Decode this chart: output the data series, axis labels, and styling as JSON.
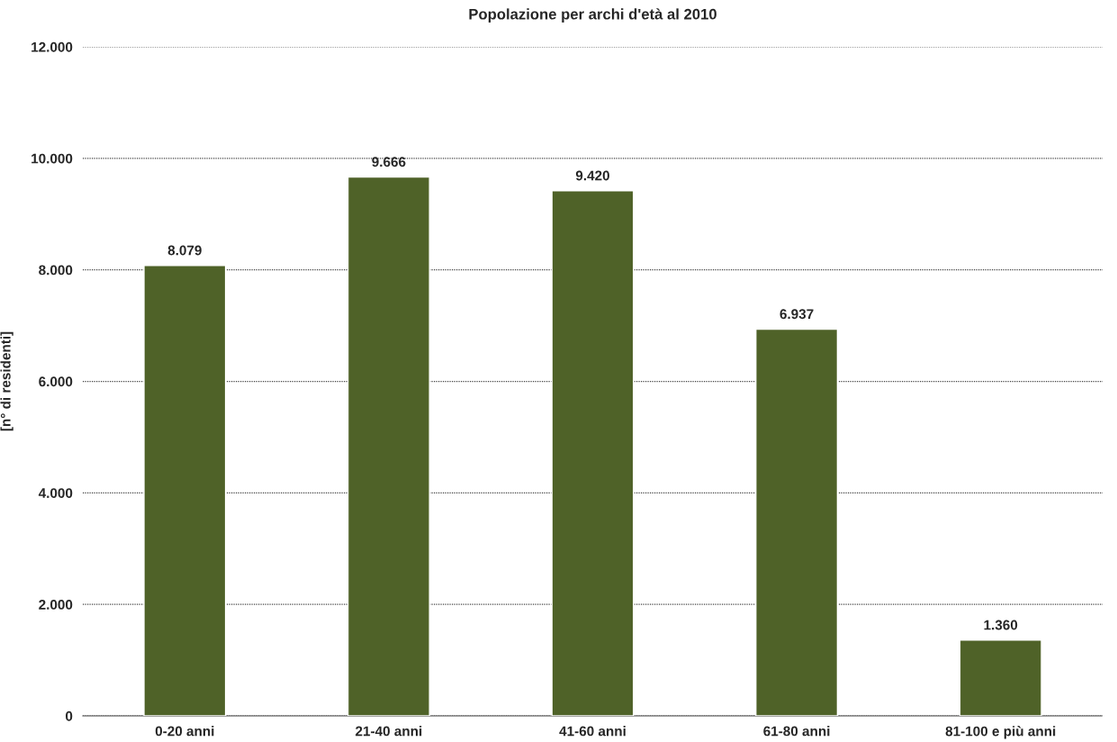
{
  "chart_data": {
    "type": "bar",
    "title": "Popolazione per archi d'età al 2010",
    "ylabel": "[n° di residenti]",
    "categories": [
      "0-20 anni",
      "21-40 anni",
      "41-60 anni",
      "61-80 anni",
      "81-100 e più anni"
    ],
    "values": [
      8079,
      9666,
      9420,
      6937,
      1360
    ],
    "value_labels": [
      "8.079",
      "9.666",
      "9.420",
      "6.937",
      "1.360"
    ],
    "color": "#4f6228",
    "ylim": [
      0,
      12000
    ],
    "yticks": [
      0,
      {
        "value": 2000,
        "label": "2.000"
      },
      {
        "value": 4000,
        "label": "4.000"
      },
      {
        "value": 6000,
        "label": "6.000"
      },
      {
        "value": 8000,
        "label": "8.000"
      },
      {
        "value": 10000,
        "label": "10.000"
      },
      {
        "value": 12000,
        "label": "12.000"
      }
    ],
    "grid": "y",
    "legend": false
  }
}
